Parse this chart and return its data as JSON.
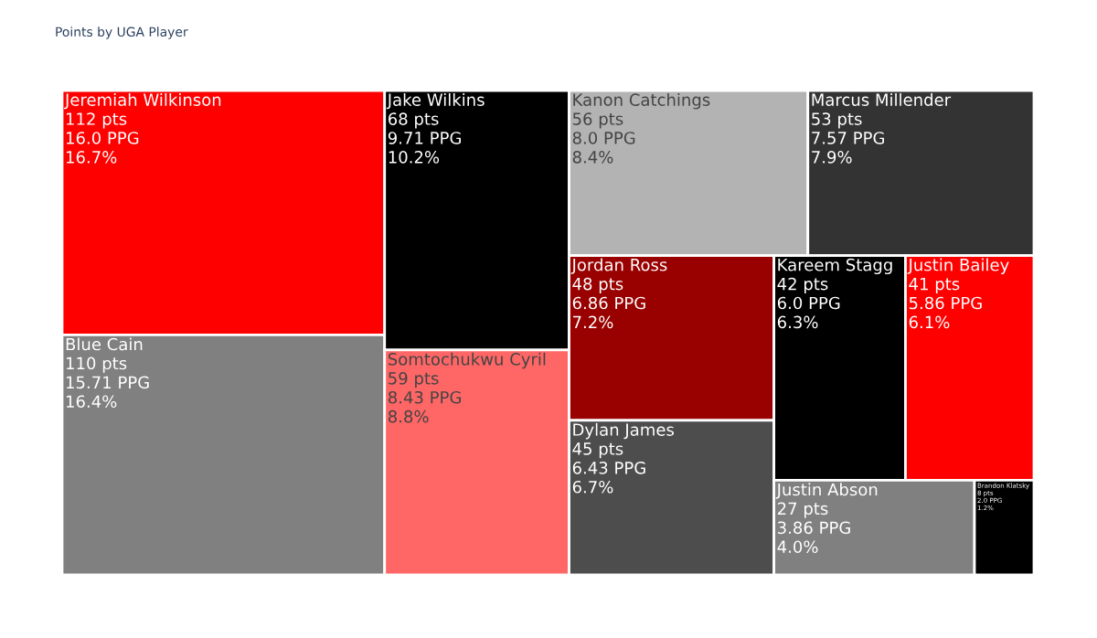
{
  "chart_data": {
    "type": "other",
    "title": "Points by UGA Player",
    "categories": [
      "Jeremiah Wilkinson",
      "Blue Cain",
      "Jake Wilkins",
      "Somtochukwu Cyril",
      "Kanon Catchings",
      "Marcus Millender",
      "Jordan Ross",
      "Dylan James",
      "Kareem Stagg",
      "Justin Bailey",
      "Justin Abson",
      "Brandon Klatsky"
    ],
    "values": [
      112,
      110,
      68,
      59,
      56,
      53,
      48,
      45,
      42,
      41,
      27,
      8
    ],
    "value_labels": [
      "112 pts\n16.0 PPG\n16.7%",
      "110 pts\n15.71 PPG\n16.4%",
      "68 pts\n9.71 PPG\n10.2%",
      "59 pts\n8.43 PPG\n8.8%",
      "56 pts\n8.0 PPG\n8.4%",
      "53 pts\n7.57 PPG\n7.9%",
      "48 pts\n6.86 PPG\n7.2%",
      "45 pts\n6.43 PPG\n6.7%",
      "42 pts\n6.0 PPG\n6.3%",
      "41 pts\n5.86 PPG\n6.1%",
      "27 pts\n3.86 PPG\n4.0%",
      "8 pts\n2.0 PPG\n1.2%"
    ],
    "colors": [
      "#ff0000",
      "#808080",
      "#000000",
      "#ff6666",
      "#b3b3b3",
      "#333333",
      "#990000",
      "#4d4d4d",
      "#000000",
      "#ff0000",
      "#808080",
      "#000000"
    ]
  }
}
